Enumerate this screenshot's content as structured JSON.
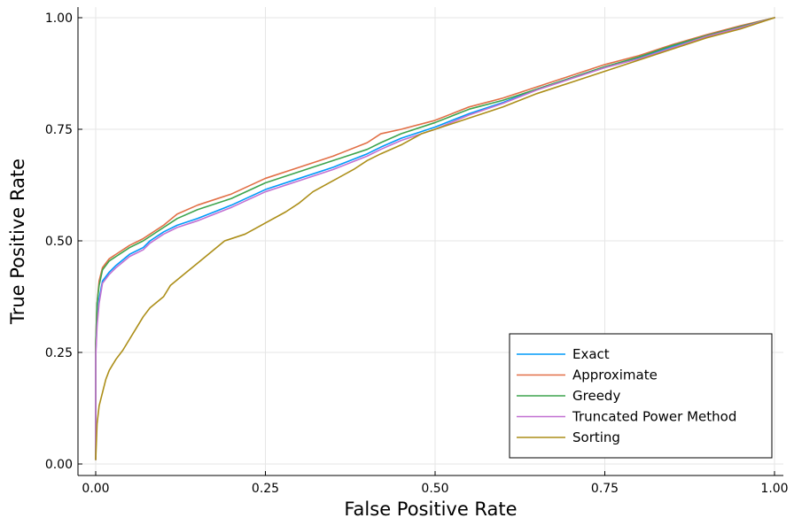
{
  "chart_data": {
    "type": "line",
    "xlabel": "False Positive Rate",
    "ylabel": "True Positive Rate",
    "xlim": [
      0,
      1
    ],
    "ylim": [
      0,
      1
    ],
    "xticks": [
      "0.00",
      "0.25",
      "0.50",
      "0.75",
      "1.00"
    ],
    "yticks": [
      "0.00",
      "0.25",
      "0.50",
      "0.75",
      "1.00"
    ],
    "grid": true,
    "legend_position": "bottom-right",
    "series": [
      {
        "name": "Exact",
        "color": "#009af9",
        "points": [
          [
            0,
            0.01
          ],
          [
            0,
            0.25
          ],
          [
            0.002,
            0.32
          ],
          [
            0.005,
            0.37
          ],
          [
            0.01,
            0.41
          ],
          [
            0.02,
            0.43
          ],
          [
            0.03,
            0.445
          ],
          [
            0.05,
            0.47
          ],
          [
            0.07,
            0.485
          ],
          [
            0.08,
            0.5
          ],
          [
            0.1,
            0.52
          ],
          [
            0.12,
            0.535
          ],
          [
            0.15,
            0.55
          ],
          [
            0.2,
            0.58
          ],
          [
            0.25,
            0.615
          ],
          [
            0.3,
            0.64
          ],
          [
            0.35,
            0.665
          ],
          [
            0.4,
            0.695
          ],
          [
            0.42,
            0.71
          ],
          [
            0.45,
            0.73
          ],
          [
            0.5,
            0.755
          ],
          [
            0.55,
            0.785
          ],
          [
            0.6,
            0.81
          ],
          [
            0.65,
            0.84
          ],
          [
            0.7,
            0.865
          ],
          [
            0.75,
            0.89
          ],
          [
            0.8,
            0.91
          ],
          [
            0.85,
            0.935
          ],
          [
            0.9,
            0.96
          ],
          [
            0.95,
            0.98
          ],
          [
            1,
            1
          ]
        ]
      },
      {
        "name": "Approximate",
        "color": "#e26f46",
        "points": [
          [
            0,
            0.01
          ],
          [
            0,
            0.27
          ],
          [
            0.002,
            0.36
          ],
          [
            0.005,
            0.41
          ],
          [
            0.01,
            0.44
          ],
          [
            0.02,
            0.46
          ],
          [
            0.03,
            0.47
          ],
          [
            0.05,
            0.49
          ],
          [
            0.07,
            0.505
          ],
          [
            0.1,
            0.535
          ],
          [
            0.12,
            0.56
          ],
          [
            0.15,
            0.58
          ],
          [
            0.2,
            0.605
          ],
          [
            0.25,
            0.64
          ],
          [
            0.3,
            0.665
          ],
          [
            0.35,
            0.69
          ],
          [
            0.4,
            0.72
          ],
          [
            0.42,
            0.74
          ],
          [
            0.45,
            0.75
          ],
          [
            0.5,
            0.77
          ],
          [
            0.55,
            0.8
          ],
          [
            0.6,
            0.82
          ],
          [
            0.65,
            0.845
          ],
          [
            0.7,
            0.87
          ],
          [
            0.75,
            0.895
          ],
          [
            0.8,
            0.915
          ],
          [
            0.85,
            0.94
          ],
          [
            0.9,
            0.962
          ],
          [
            0.95,
            0.982
          ],
          [
            1,
            1
          ]
        ]
      },
      {
        "name": "Greedy",
        "color": "#3da44d",
        "points": [
          [
            0,
            0.01
          ],
          [
            0,
            0.27
          ],
          [
            0.002,
            0.36
          ],
          [
            0.005,
            0.4
          ],
          [
            0.01,
            0.435
          ],
          [
            0.02,
            0.455
          ],
          [
            0.03,
            0.465
          ],
          [
            0.05,
            0.485
          ],
          [
            0.07,
            0.5
          ],
          [
            0.1,
            0.53
          ],
          [
            0.12,
            0.55
          ],
          [
            0.15,
            0.57
          ],
          [
            0.2,
            0.595
          ],
          [
            0.25,
            0.63
          ],
          [
            0.3,
            0.655
          ],
          [
            0.35,
            0.68
          ],
          [
            0.4,
            0.705
          ],
          [
            0.42,
            0.72
          ],
          [
            0.45,
            0.74
          ],
          [
            0.5,
            0.765
          ],
          [
            0.55,
            0.795
          ],
          [
            0.6,
            0.815
          ],
          [
            0.65,
            0.84
          ],
          [
            0.7,
            0.865
          ],
          [
            0.75,
            0.89
          ],
          [
            0.8,
            0.912
          ],
          [
            0.85,
            0.938
          ],
          [
            0.9,
            0.96
          ],
          [
            0.95,
            0.98
          ],
          [
            1,
            1
          ]
        ]
      },
      {
        "name": "Truncated Power Method",
        "color": "#c271d2",
        "points": [
          [
            0,
            0.01
          ],
          [
            0,
            0.24
          ],
          [
            0.002,
            0.31
          ],
          [
            0.005,
            0.36
          ],
          [
            0.01,
            0.405
          ],
          [
            0.02,
            0.425
          ],
          [
            0.03,
            0.44
          ],
          [
            0.05,
            0.465
          ],
          [
            0.07,
            0.48
          ],
          [
            0.08,
            0.495
          ],
          [
            0.1,
            0.515
          ],
          [
            0.12,
            0.53
          ],
          [
            0.15,
            0.545
          ],
          [
            0.2,
            0.575
          ],
          [
            0.25,
            0.61
          ],
          [
            0.3,
            0.635
          ],
          [
            0.35,
            0.66
          ],
          [
            0.4,
            0.69
          ],
          [
            0.42,
            0.705
          ],
          [
            0.45,
            0.725
          ],
          [
            0.5,
            0.75
          ],
          [
            0.55,
            0.782
          ],
          [
            0.6,
            0.808
          ],
          [
            0.65,
            0.838
          ],
          [
            0.7,
            0.863
          ],
          [
            0.75,
            0.888
          ],
          [
            0.8,
            0.908
          ],
          [
            0.85,
            0.933
          ],
          [
            0.9,
            0.958
          ],
          [
            0.95,
            0.978
          ],
          [
            1,
            1
          ]
        ]
      },
      {
        "name": "Sorting",
        "color": "#ac8e18",
        "points": [
          [
            0,
            0.01
          ],
          [
            0.002,
            0.09
          ],
          [
            0.005,
            0.13
          ],
          [
            0.01,
            0.16
          ],
          [
            0.015,
            0.19
          ],
          [
            0.02,
            0.21
          ],
          [
            0.03,
            0.235
          ],
          [
            0.04,
            0.255
          ],
          [
            0.05,
            0.28
          ],
          [
            0.06,
            0.305
          ],
          [
            0.07,
            0.33
          ],
          [
            0.08,
            0.35
          ],
          [
            0.1,
            0.375
          ],
          [
            0.11,
            0.4
          ],
          [
            0.13,
            0.425
          ],
          [
            0.15,
            0.45
          ],
          [
            0.17,
            0.475
          ],
          [
            0.19,
            0.5
          ],
          [
            0.22,
            0.515
          ],
          [
            0.25,
            0.54
          ],
          [
            0.28,
            0.565
          ],
          [
            0.3,
            0.585
          ],
          [
            0.32,
            0.61
          ],
          [
            0.35,
            0.635
          ],
          [
            0.38,
            0.66
          ],
          [
            0.4,
            0.68
          ],
          [
            0.42,
            0.695
          ],
          [
            0.45,
            0.715
          ],
          [
            0.48,
            0.74
          ],
          [
            0.5,
            0.75
          ],
          [
            0.55,
            0.775
          ],
          [
            0.6,
            0.8
          ],
          [
            0.65,
            0.83
          ],
          [
            0.7,
            0.855
          ],
          [
            0.75,
            0.88
          ],
          [
            0.8,
            0.905
          ],
          [
            0.85,
            0.93
          ],
          [
            0.9,
            0.955
          ],
          [
            0.95,
            0.975
          ],
          [
            1,
            1
          ]
        ]
      }
    ]
  }
}
